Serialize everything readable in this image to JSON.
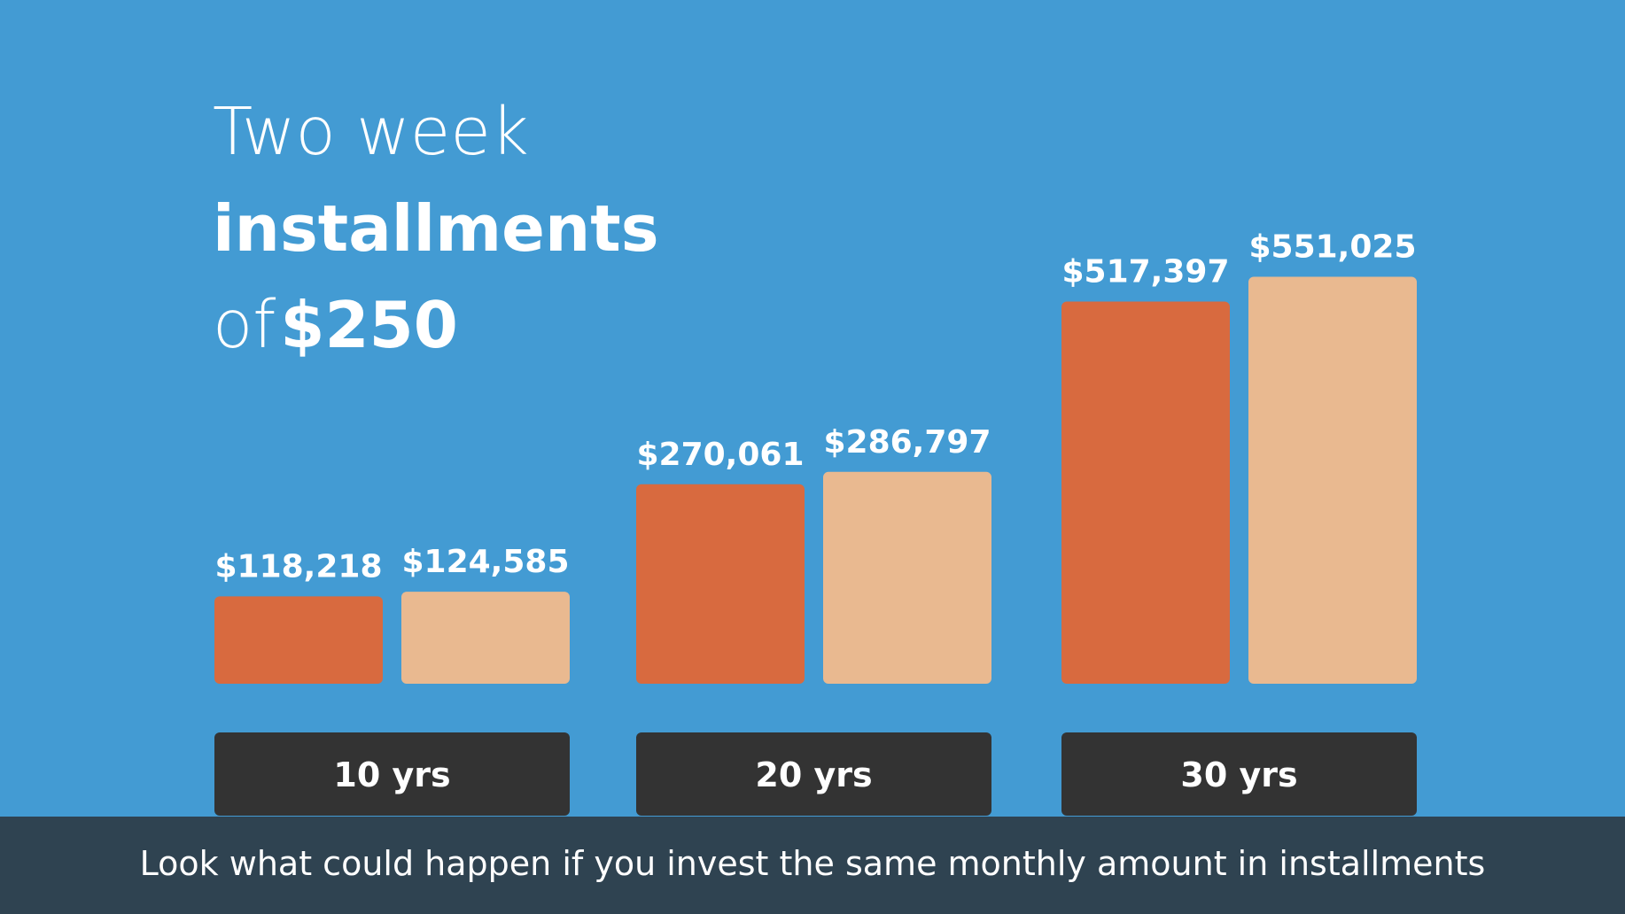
{
  "header": {
    "line1": "Two week",
    "line2": "installments",
    "line3_prefix": "of",
    "line3_amount": "$250"
  },
  "footer": {
    "text": "Look what could happen if you invest the same monthly amount in installments"
  },
  "colors": {
    "background": "#439bd3",
    "series_a": "#d86a3f",
    "series_b": "#e9b990",
    "category_box": "#333333",
    "footer_bg": "#2f4351",
    "text": "#ffffff"
  },
  "chart_data": {
    "type": "bar",
    "categories": [
      "10 yrs",
      "20 yrs",
      "30 yrs"
    ],
    "series": [
      {
        "values": [
          118218,
          270061,
          517397
        ],
        "labels": [
          "$118,218",
          "$270,061",
          "$517,397"
        ]
      },
      {
        "values": [
          124585,
          286797,
          551025
        ],
        "labels": [
          "$124,585",
          "$286,797",
          "$551,025"
        ]
      }
    ],
    "title": "",
    "xlabel": "",
    "ylabel": "",
    "ylim": [
      0,
      600000
    ],
    "grid": false,
    "legend": "none"
  }
}
